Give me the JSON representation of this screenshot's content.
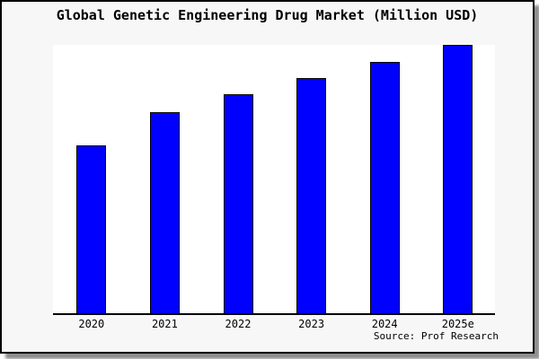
{
  "chart_data": {
    "type": "bar",
    "title": "Global Genetic Engineering Drug Market (Million USD)",
    "categories": [
      "2020",
      "2021",
      "2022",
      "2023",
      "2024",
      "2025e"
    ],
    "values": [
      62.5,
      75,
      81.5,
      87.5,
      93.5,
      100
    ],
    "values_unit": "relative height (no y-axis labels shown in chart)",
    "xlabel": "",
    "ylabel": "",
    "ylim": [
      0,
      100
    ],
    "y_axis_visible": false,
    "grid": false,
    "legend": false,
    "bar_color": "#0000ff",
    "bar_border_color": "#000000",
    "source": "Source: Prof Research"
  },
  "colors": {
    "figure_background": "#f7f7f7",
    "plot_background": "#ffffff",
    "figure_border": "#000000",
    "shadow": "#8f8f8f",
    "text": "#000000"
  }
}
